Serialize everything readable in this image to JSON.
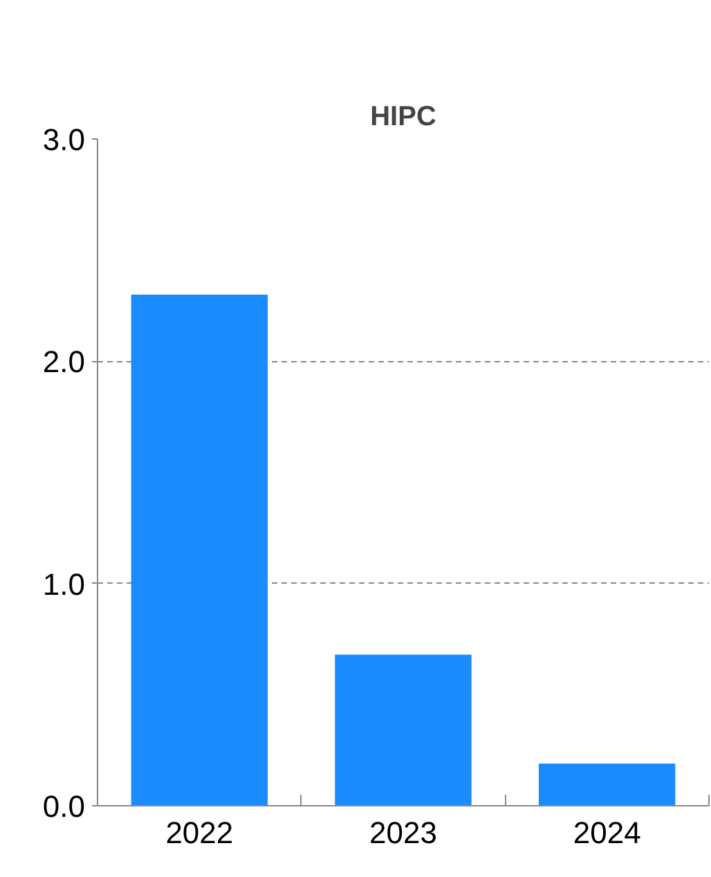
{
  "chart_data": {
    "type": "bar",
    "title": "HIPC",
    "categories": [
      "2022",
      "2023",
      "2024"
    ],
    "values": [
      2.3,
      0.68,
      0.19
    ],
    "color": "#1a8cff",
    "ylim": [
      0,
      3
    ],
    "yticks": [
      {
        "value": 0,
        "label": "0.0"
      },
      {
        "value": 1,
        "label": "1.0"
      },
      {
        "value": 2,
        "label": "2.0"
      },
      {
        "value": 3,
        "label": "3.0"
      }
    ],
    "grid": "y"
  }
}
